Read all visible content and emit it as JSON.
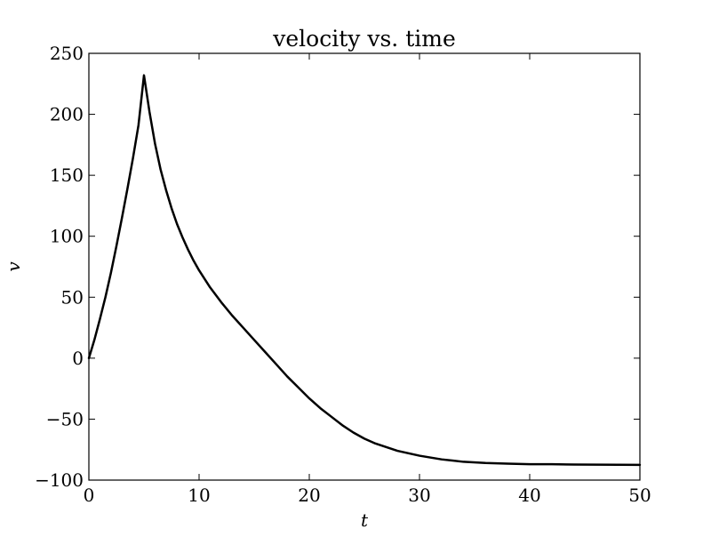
{
  "chart_data": {
    "type": "line",
    "title": "velocity vs. time",
    "xlabel": "t",
    "ylabel": "v",
    "xlim": [
      0,
      50
    ],
    "ylim": [
      -100,
      250
    ],
    "x_ticks": [
      0,
      10,
      20,
      30,
      40,
      50
    ],
    "y_ticks": [
      -100,
      -50,
      0,
      50,
      100,
      150,
      200,
      250
    ],
    "x_tick_labels": [
      "0",
      "10",
      "20",
      "30",
      "40",
      "50"
    ],
    "y_tick_labels": [
      "−100",
      "−50",
      "0",
      "50",
      "100",
      "150",
      "200",
      "250"
    ],
    "grid": false,
    "line_color": "#000000",
    "series": [
      {
        "x": [
          0,
          0.5,
          1,
          1.5,
          2,
          2.5,
          3,
          3.5,
          4,
          4.5,
          5,
          5.5,
          6,
          6.5,
          7,
          7.5,
          8,
          8.5,
          9,
          9.5,
          10,
          11,
          12,
          13,
          14,
          15,
          16,
          17,
          18,
          19,
          20,
          21,
          22,
          23,
          24,
          25,
          26,
          27,
          28,
          29,
          30,
          32,
          34,
          36,
          38,
          40,
          42,
          44,
          46,
          48,
          50
        ],
        "y": [
          0,
          15,
          32,
          50,
          70,
          92,
          115,
          139,
          164,
          191,
          232,
          202,
          176,
          155,
          138,
          123,
          110,
          99,
          89,
          80,
          72,
          58,
          46,
          35,
          25,
          15,
          5,
          -5,
          -15,
          -24,
          -33,
          -41,
          -48,
          -55,
          -61,
          -66,
          -70,
          -73,
          -76,
          -78,
          -80,
          -83,
          -85,
          -86,
          -86.5,
          -87,
          -87,
          -87.2,
          -87.3,
          -87.4,
          -87.5
        ]
      }
    ]
  }
}
